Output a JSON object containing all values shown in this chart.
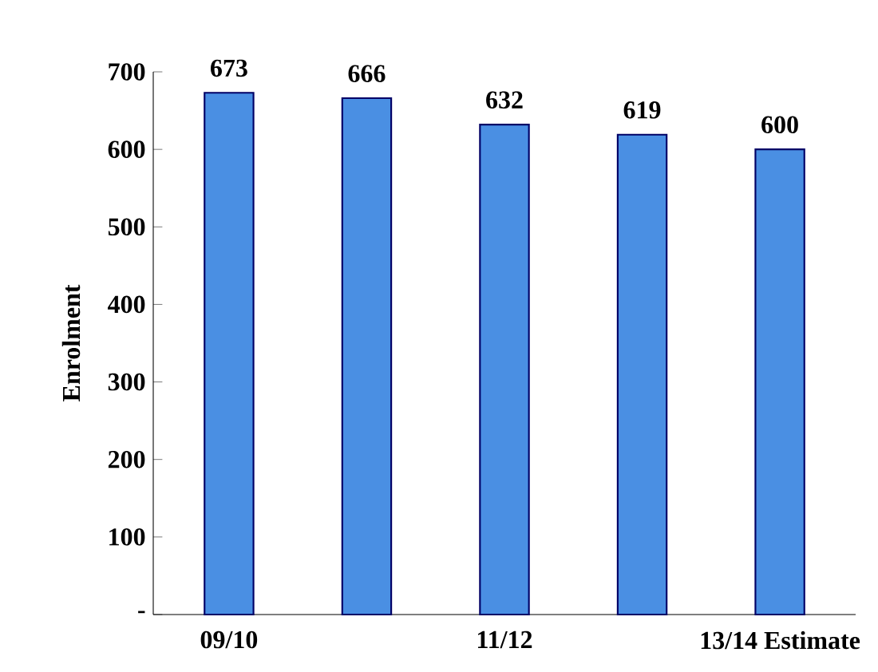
{
  "chart_data": {
    "type": "bar",
    "ylabel": "Enrolment",
    "categories": [
      "09/10",
      null,
      "11/12",
      null,
      "13/14 Estimate"
    ],
    "values": [
      673,
      666,
      632,
      619,
      600
    ],
    "color": "#4a8fe3",
    "ylim": [
      0,
      700
    ],
    "yticks": [
      {
        "value": 0,
        "label": "-"
      },
      100,
      200,
      300,
      400,
      500,
      600,
      700
    ],
    "data_labels": true,
    "grid": false,
    "legend": false
  }
}
